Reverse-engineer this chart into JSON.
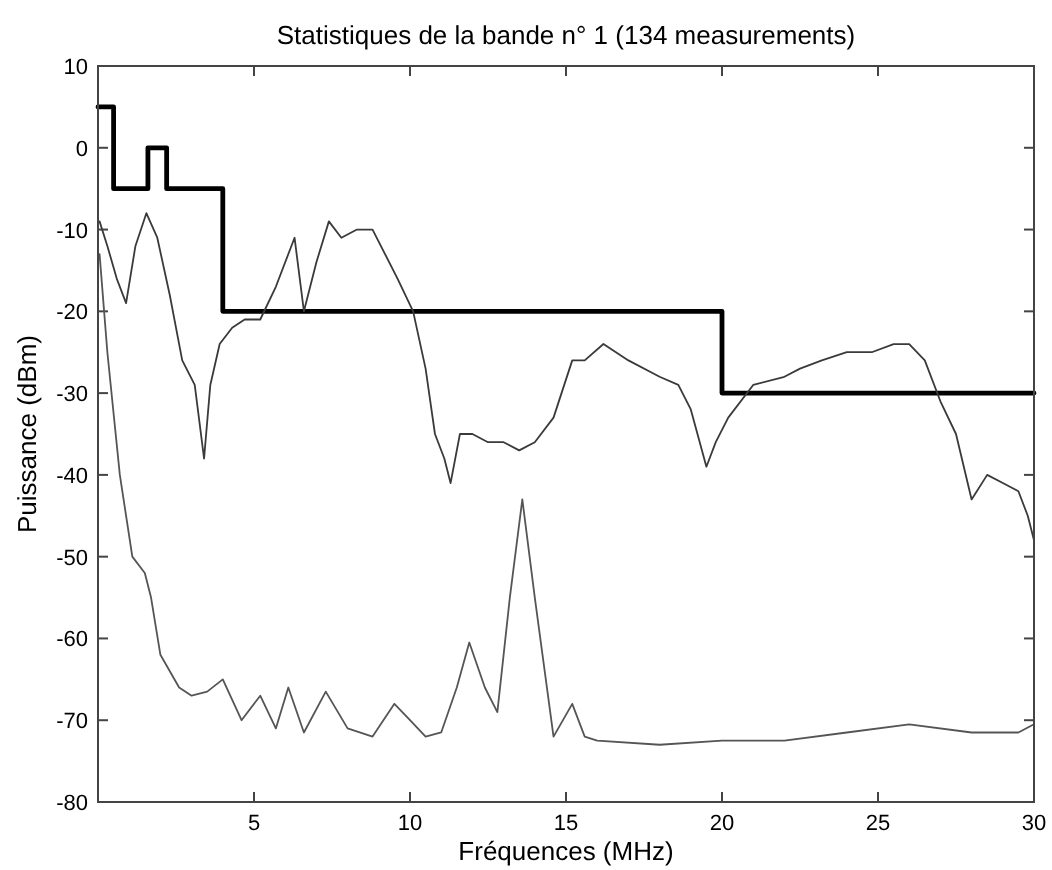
{
  "chart_data": {
    "type": "line",
    "title": "Statistiques de la bande n° 1 (134 measurements)",
    "xlabel": "Fréquences (MHz)",
    "ylabel": "Puissance (dBm)",
    "xlim": [
      0,
      30
    ],
    "ylim": [
      -80,
      10
    ],
    "xticks": [
      5,
      10,
      15,
      20,
      25,
      30
    ],
    "yticks": [
      10,
      0,
      -10,
      -20,
      -30,
      -40,
      -50,
      -60,
      -70,
      -80
    ],
    "grid": false,
    "marker": "none",
    "line_style": "solid",
    "series": [
      {
        "type": "step",
        "color": "#000000",
        "x": [
          0,
          0.5,
          1.6,
          2.2,
          4,
          20,
          30
        ],
        "values": [
          5,
          -5,
          0,
          -5,
          -20,
          -30,
          -30
        ]
      },
      {
        "color": "#3a3a3a",
        "x": [
          0.05,
          0.3,
          0.6,
          0.9,
          1.2,
          1.55,
          1.9,
          2.3,
          2.7,
          3.1,
          3.4,
          3.6,
          3.9,
          4.3,
          4.7,
          5.2,
          5.7,
          6.3,
          6.6,
          7.0,
          7.4,
          7.8,
          8.3,
          8.8,
          9.2,
          9.6,
          10.1,
          10.5,
          10.8,
          11.1,
          11.3,
          11.6,
          12.0,
          12.5,
          13.0,
          13.5,
          14.0,
          14.6,
          15.2,
          15.6,
          16.2,
          17.0,
          18.0,
          18.6,
          19.0,
          19.5,
          19.8,
          20.2,
          21.0,
          22.0,
          22.5,
          23.2,
          24.0,
          24.8,
          25.5,
          26.0,
          26.5,
          27.0,
          27.5,
          28.0,
          28.5,
          29.0,
          29.5,
          29.8,
          30.0
        ],
        "values": [
          -9,
          -12,
          -16,
          -19,
          -12,
          -8,
          -11,
          -18,
          -26,
          -29,
          -38,
          -29,
          -24,
          -22,
          -21,
          -21,
          -17,
          -11,
          -20,
          -14,
          -9,
          -11,
          -10,
          -10,
          -13,
          -16,
          -20,
          -27,
          -35,
          -38,
          -41,
          -35,
          -35,
          -36,
          -36,
          -37,
          -36,
          -33,
          -26,
          -26,
          -24,
          -26,
          -28,
          -29,
          -32,
          -39,
          -36,
          -33,
          -29,
          -28,
          -27,
          -26,
          -25,
          -25,
          -24,
          -24,
          -26,
          -31,
          -35,
          -43,
          -40,
          -41,
          -42,
          -45,
          -48
        ]
      },
      {
        "color": "#555555",
        "x": [
          0.05,
          0.3,
          0.7,
          1.1,
          1.5,
          1.7,
          2.0,
          2.6,
          3.0,
          3.5,
          4.0,
          4.6,
          5.2,
          5.7,
          6.1,
          6.6,
          7.3,
          8.0,
          8.8,
          9.5,
          10.0,
          10.5,
          11.0,
          11.5,
          11.9,
          12.4,
          12.8,
          13.2,
          13.6,
          14.0,
          14.6,
          15.2,
          15.6,
          16.0,
          18.0,
          20.0,
          22.0,
          24.0,
          26.0,
          28.0,
          29.5,
          30.0
        ],
        "values": [
          -13,
          -25,
          -40,
          -50,
          -52,
          -55,
          -62,
          -66,
          -67,
          -66.5,
          -65,
          -70,
          -67,
          -71,
          -66,
          -71.5,
          -66.5,
          -71,
          -72,
          -68,
          -70,
          -72,
          -71.5,
          -66,
          -60.5,
          -66,
          -69,
          -55,
          -43,
          -55,
          -72,
          -68,
          -72,
          -72.5,
          -73,
          -72.5,
          -72.5,
          -71.5,
          -70.5,
          -71.5,
          -71.5,
          -70.5
        ]
      }
    ]
  }
}
